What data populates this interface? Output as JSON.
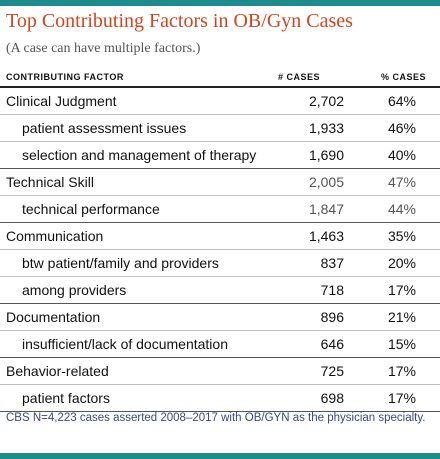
{
  "title": "Top Contributing Factors in OB/Gyn Cases",
  "subtitle": "(A case can have multiple factors.)",
  "columns": {
    "factor": "CONTRIBUTING FACTOR",
    "cases": "# CASES",
    "pct": "% CASES"
  },
  "rows": [
    {
      "label": "Clinical Judgment",
      "cases": "2,702",
      "pct": "64%"
    },
    {
      "label": "patient assessment issues",
      "cases": "1,933",
      "pct": "46%"
    },
    {
      "label": "selection and management of therapy",
      "cases": "1,690",
      "pct": "40%"
    },
    {
      "label": "Technical Skill",
      "cases": "2,005",
      "pct": "47%"
    },
    {
      "label": "technical performance",
      "cases": "1,847",
      "pct": "44%"
    },
    {
      "label": "Communication",
      "cases": "1,463",
      "pct": "35%"
    },
    {
      "label": "btw patient/family and providers",
      "cases": "837",
      "pct": "20%"
    },
    {
      "label": "among providers",
      "cases": "718",
      "pct": "17%"
    },
    {
      "label": "Documentation",
      "cases": "896",
      "pct": "21%"
    },
    {
      "label": "insufficient/lack of documentation",
      "cases": "646",
      "pct": "15%"
    },
    {
      "label": "Behavior-related",
      "cases": "725",
      "pct": "17%"
    },
    {
      "label": "patient factors",
      "cases": "698",
      "pct": "17%"
    }
  ],
  "footnote": "CBS N=4,223 cases asserted 2008–2017 with OB/GYN as the physician specialty.",
  "colors": {
    "accent_bar": "#1e8c8c",
    "title": "#d0461f",
    "footnote": "#3a4a78"
  }
}
